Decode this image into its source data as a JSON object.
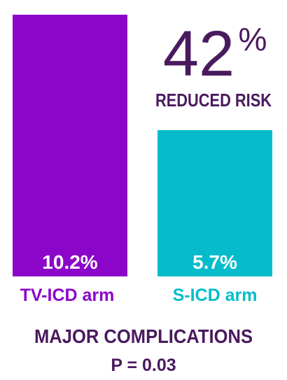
{
  "chart_data": {
    "type": "bar",
    "categories": [
      "TV-ICD arm",
      "S-ICD arm"
    ],
    "values": [
      10.2,
      5.7
    ],
    "value_labels": [
      "10.2%",
      "5.7%"
    ],
    "ylim": [
      0,
      10.2
    ],
    "title": "MAJOR COMPLICATIONS",
    "subtitle": "P = 0.03",
    "annotation": {
      "big_number": "42",
      "big_unit": "%",
      "caption": "REDUCED RISK"
    },
    "colors": [
      "#8c06c9",
      "#06bccc"
    ],
    "text_colors": {
      "headline": "#4a1a5e",
      "value_label": "#ffffff"
    },
    "grid": false
  }
}
